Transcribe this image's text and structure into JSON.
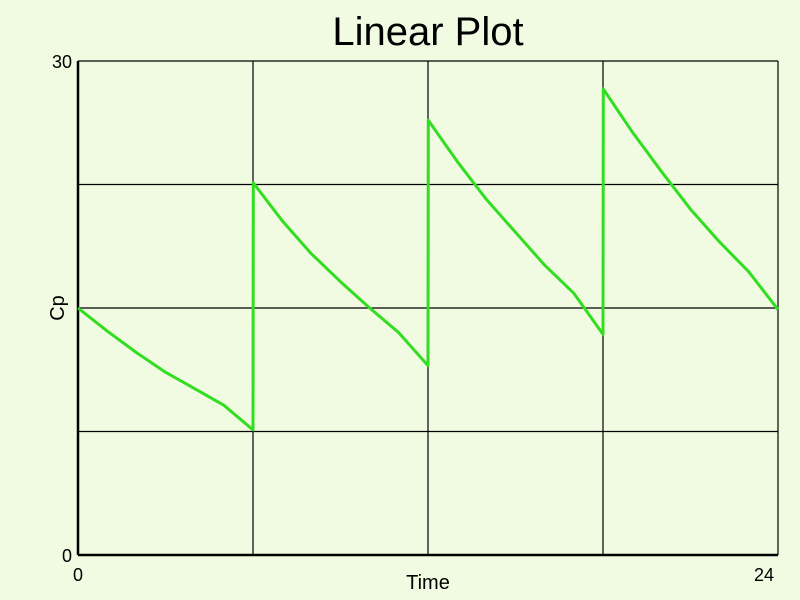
{
  "chart_data": {
    "type": "line",
    "title": "Linear Plot",
    "xlabel": "Time",
    "ylabel": "Cp",
    "xlim": [
      0,
      24
    ],
    "ylim": [
      0,
      30
    ],
    "x_tick_labels": [
      "0",
      "24"
    ],
    "y_tick_labels": [
      "0",
      "30"
    ],
    "grid": true,
    "legend": "none",
    "colors": {
      "background": "#f1fbe2",
      "line": "#33dd22",
      "grid": "#000000"
    },
    "series": [
      {
        "x": [
          0,
          1,
          2,
          3,
          4,
          5,
          6,
          6.01,
          7,
          8,
          9,
          10,
          11,
          12,
          12.01,
          13,
          14,
          15,
          16,
          17,
          18,
          18.01,
          19,
          20,
          21,
          22,
          23,
          24
        ],
        "values": [
          15.0,
          13.6,
          12.3,
          11.1,
          10.1,
          9.1,
          7.6,
          22.6,
          20.3,
          18.3,
          16.6,
          15.0,
          13.5,
          11.5,
          26.4,
          23.9,
          21.6,
          19.6,
          17.6,
          15.9,
          13.4,
          28.3,
          25.7,
          23.3,
          21.0,
          19.0,
          17.2,
          14.9
        ]
      }
    ]
  }
}
